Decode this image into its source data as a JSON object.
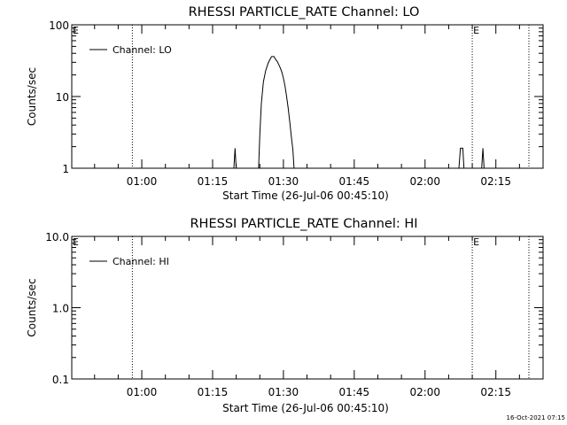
{
  "footer": {
    "timestamp": "16-Oct-2021 07:15"
  },
  "chart_data": [
    {
      "type": "line",
      "title": "RHESSI PARTICLE_RATE Channel: LO",
      "xlabel": "Start Time (26-Jul-06 00:45:10)",
      "ylabel": "Counts/sec",
      "y_scale": "log",
      "ylim": [
        1,
        100
      ],
      "y_ticks": [
        {
          "value": 1,
          "label": "1"
        },
        {
          "value": 10,
          "label": "10"
        },
        {
          "value": 100,
          "label": "100"
        }
      ],
      "xlim": [
        "00:45:10",
        "02:25:00"
      ],
      "x_ticks": [
        "01:00",
        "01:15",
        "01:30",
        "01:45",
        "02:00",
        "02:15"
      ],
      "vertical_markers": [
        {
          "x": "00:58:00",
          "label": ""
        },
        {
          "x": "02:10:00",
          "label": "E"
        },
        {
          "x": "02:22:00",
          "label": ""
        }
      ],
      "edge_label": "E",
      "legend": {
        "position": "top-left",
        "entries": [
          "Channel: LO"
        ]
      },
      "series": [
        {
          "name": "Channel: LO",
          "segments": [
            [
              [
                "01:19:30",
                1.0
              ],
              [
                "01:19:45",
                1.9
              ],
              [
                "01:20:00",
                1.0
              ]
            ],
            [
              [
                "01:24:45",
                1.0
              ],
              [
                "01:25:00",
                3.0
              ],
              [
                "01:25:20",
                8.0
              ],
              [
                "01:25:45",
                16.0
              ],
              [
                "01:26:15",
                23.0
              ],
              [
                "01:26:45",
                29.0
              ],
              [
                "01:27:10",
                33.0
              ],
              [
                "01:27:30",
                36.0
              ],
              [
                "01:28:00",
                36.0
              ],
              [
                "01:28:20",
                33.0
              ],
              [
                "01:28:40",
                31.0
              ],
              [
                "01:29:00",
                28.0
              ],
              [
                "01:29:20",
                25.0
              ],
              [
                "01:29:40",
                22.0
              ],
              [
                "01:30:00",
                18.0
              ],
              [
                "01:30:20",
                14.0
              ],
              [
                "01:30:40",
                10.0
              ],
              [
                "01:31:00",
                7.0
              ],
              [
                "01:31:20",
                4.5
              ],
              [
                "01:31:40",
                2.8
              ],
              [
                "01:32:00",
                1.8
              ],
              [
                "01:32:15",
                1.0
              ]
            ],
            [
              [
                "02:07:10",
                1.0
              ],
              [
                "02:07:30",
                1.9
              ],
              [
                "02:08:00",
                1.9
              ],
              [
                "02:08:15",
                1.0
              ]
            ],
            [
              [
                "02:12:00",
                1.0
              ],
              [
                "02:12:15",
                1.9
              ],
              [
                "02:12:30",
                1.0
              ]
            ]
          ]
        }
      ]
    },
    {
      "type": "line",
      "title": "RHESSI PARTICLE_RATE Channel: HI",
      "xlabel": "Start Time (26-Jul-06 00:45:10)",
      "ylabel": "Counts/sec",
      "y_scale": "log",
      "ylim": [
        0.1,
        10
      ],
      "y_ticks": [
        {
          "value": 0.1,
          "label": "0.1"
        },
        {
          "value": 1,
          "label": "1.0"
        },
        {
          "value": 10,
          "label": "10.0"
        }
      ],
      "xlim": [
        "00:45:10",
        "02:25:00"
      ],
      "x_ticks": [
        "01:00",
        "01:15",
        "01:30",
        "01:45",
        "02:00",
        "02:15"
      ],
      "vertical_markers": [
        {
          "x": "00:58:00",
          "label": ""
        },
        {
          "x": "02:10:00",
          "label": "E"
        },
        {
          "x": "02:22:00",
          "label": ""
        }
      ],
      "edge_label": "E",
      "legend": {
        "position": "top-left",
        "entries": [
          "Channel: HI"
        ]
      },
      "series": [
        {
          "name": "Channel: HI",
          "segments": []
        }
      ]
    }
  ]
}
